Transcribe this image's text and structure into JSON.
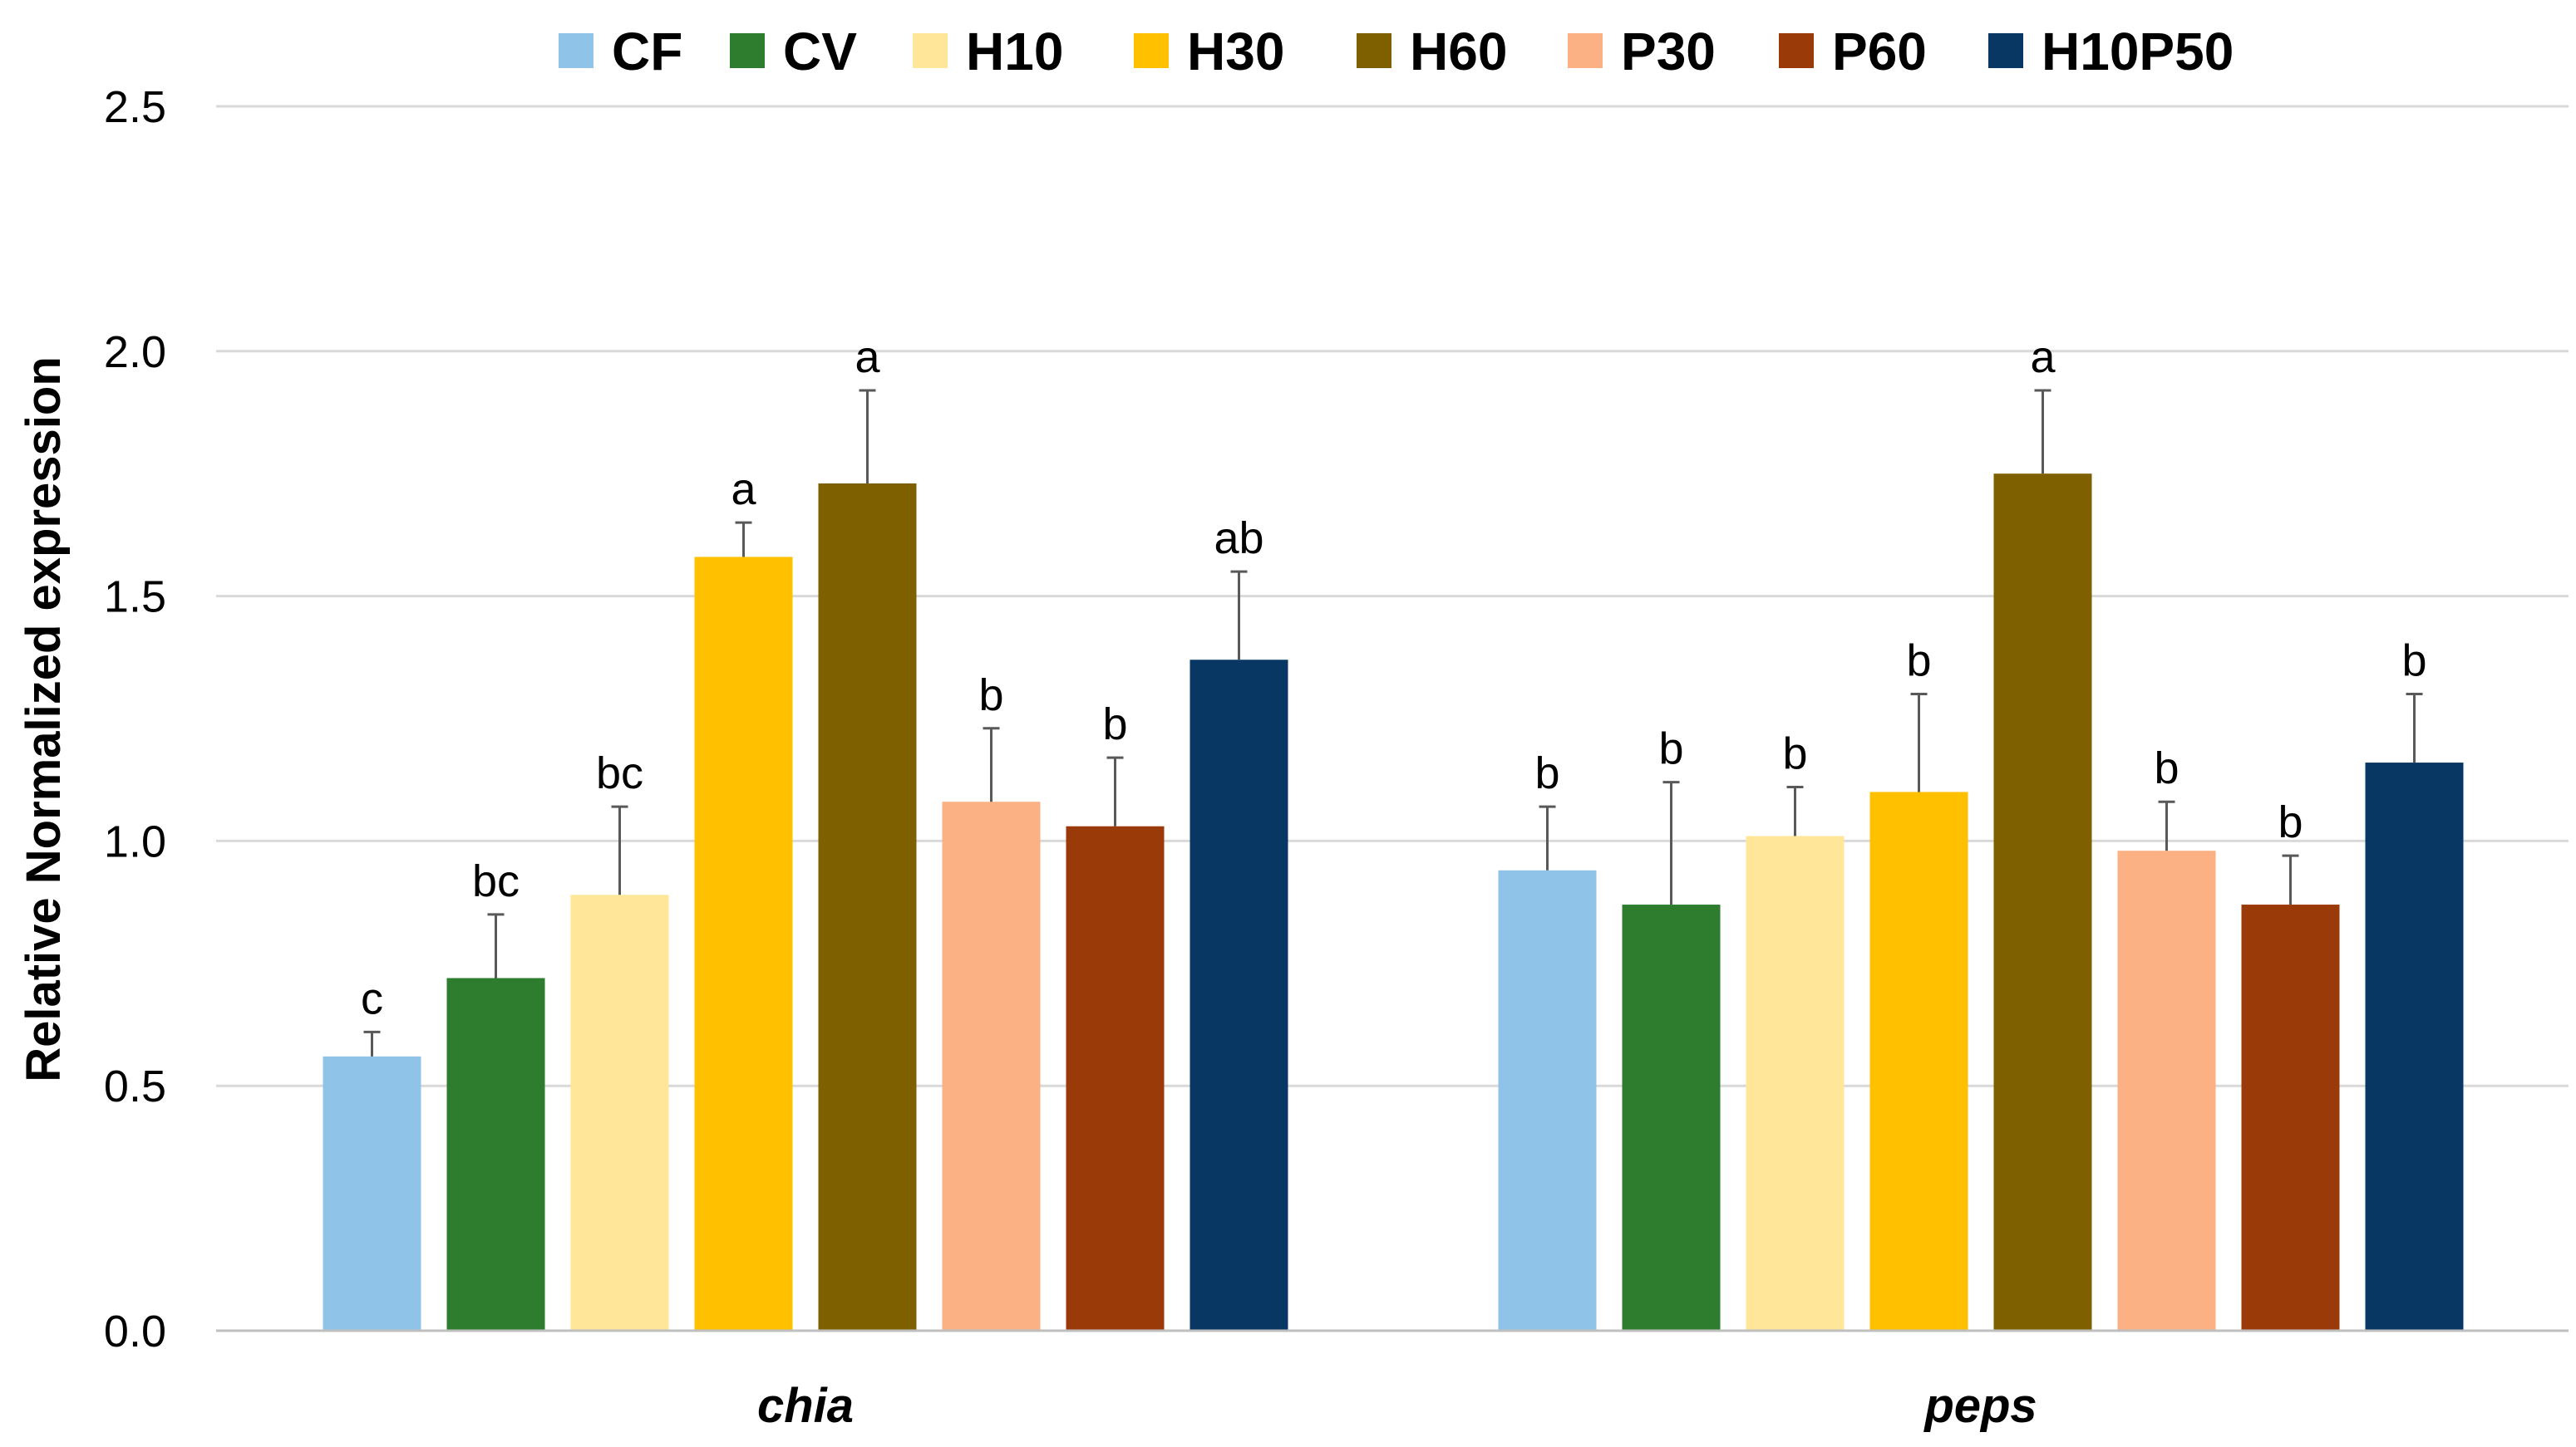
{
  "chart_data": {
    "type": "bar",
    "title": "",
    "xlabel": "",
    "ylabel": "Relative Normalized expression",
    "ylim": [
      0,
      2.5
    ],
    "yticks": [
      "0.0",
      "0.5",
      "1.0",
      "1.5",
      "2.0",
      "2.5"
    ],
    "ytick_values": [
      0,
      0.5,
      1.0,
      1.5,
      2.0,
      2.5
    ],
    "grid": true,
    "legend_position": "top",
    "categories": [
      "chia",
      "peps"
    ],
    "series": [
      {
        "name": "CF",
        "color": "#8fc4e8",
        "values": [
          0.56,
          0.94
        ],
        "errors": [
          0.05,
          0.13
        ],
        "labels": [
          "c",
          "b"
        ]
      },
      {
        "name": "CV",
        "color": "#2e7d2e",
        "values": [
          0.72,
          0.87
        ],
        "errors": [
          0.13,
          0.25
        ],
        "labels": [
          "bc",
          "b"
        ]
      },
      {
        "name": "H10",
        "color": "#ffe699",
        "values": [
          0.89,
          1.01
        ],
        "errors": [
          0.18,
          0.1
        ],
        "labels": [
          "bc",
          "b"
        ]
      },
      {
        "name": "H30",
        "color": "#ffc000",
        "values": [
          1.58,
          1.1
        ],
        "errors": [
          0.07,
          0.2
        ],
        "labels": [
          "a",
          "b"
        ]
      },
      {
        "name": "H60",
        "color": "#7f6000",
        "values": [
          1.73,
          1.75
        ],
        "errors": [
          0.19,
          0.17
        ],
        "labels": [
          "a",
          "a"
        ]
      },
      {
        "name": "P30",
        "color": "#fbb183",
        "values": [
          1.08,
          0.98
        ],
        "errors": [
          0.15,
          0.1
        ],
        "labels": [
          "b",
          "b"
        ]
      },
      {
        "name": "P60",
        "color": "#9a3a08",
        "values": [
          1.03,
          0.87
        ],
        "errors": [
          0.14,
          0.1
        ],
        "labels": [
          "b",
          "b"
        ]
      },
      {
        "name": "H10P50",
        "color": "#083763",
        "values": [
          1.37,
          1.16
        ],
        "errors": [
          0.18,
          0.14
        ],
        "labels": [
          "ab",
          "b"
        ]
      }
    ]
  }
}
